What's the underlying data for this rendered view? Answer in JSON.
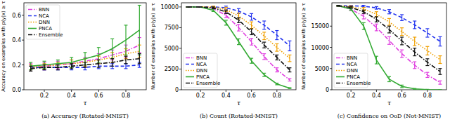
{
  "chart_data": [
    {
      "type": "line",
      "title": "(a) Accuracy (Rotated-MNIST)",
      "x_label": "τ",
      "y_label": "Accuracy on examples with p(y|x) ≥ τ",
      "x": [
        0.1,
        0.2,
        0.3,
        0.4,
        0.5,
        0.6,
        0.7,
        0.8,
        0.9
      ],
      "xlim": [
        0.05,
        0.95
      ],
      "xticks": [
        0.2,
        0.4,
        0.6,
        0.8
      ],
      "ylim": [
        0,
        0.7
      ],
      "yticks": [
        {
          "value": 0,
          "label": "0.0"
        },
        0.2,
        0.4,
        0.6
      ],
      "legend": "upper left",
      "series": [
        {
          "name": "BNN",
          "color": "#e040e0",
          "line_style": "dashdot",
          "values": [
            0.18,
            0.19,
            0.2,
            0.21,
            0.23,
            0.25,
            0.28,
            0.31,
            0.36
          ],
          "errors": [
            0.03,
            0.03,
            0.03,
            0.03,
            0.03,
            0.04,
            0.04,
            0.05,
            0.06
          ]
        },
        {
          "name": "NCA",
          "color": "#2233ee",
          "line_style": "dashed",
          "values": [
            0.18,
            0.18,
            0.18,
            0.18,
            0.18,
            0.19,
            0.19,
            0.19,
            0.2
          ],
          "errors": [
            0.02,
            0.02,
            0.02,
            0.02,
            0.02,
            0.02,
            0.02,
            0.02,
            0.02
          ]
        },
        {
          "name": "DNN",
          "color": "#f0a000",
          "line_style": "dotted",
          "values": [
            0.18,
            0.19,
            0.2,
            0.21,
            0.22,
            0.24,
            0.26,
            0.29,
            0.31
          ],
          "errors": [
            0.02,
            0.02,
            0.02,
            0.03,
            0.03,
            0.03,
            0.04,
            0.04,
            0.05
          ]
        },
        {
          "name": "PNCA",
          "color": "#33aa33",
          "line_style": "solid",
          "values": [
            0.19,
            0.2,
            0.21,
            0.22,
            0.25,
            0.28,
            0.33,
            0.4,
            0.48
          ],
          "errors": [
            0.03,
            0.03,
            0.03,
            0.04,
            0.05,
            0.06,
            0.08,
            0.12,
            0.2
          ]
        },
        {
          "name": "Ensemble",
          "color": "#111111",
          "line_style": "dashdot",
          "values": [
            0.17,
            0.18,
            0.18,
            0.19,
            0.2,
            0.21,
            0.22,
            0.24,
            0.25
          ],
          "errors": [
            0.02,
            0.02,
            0.02,
            0.02,
            0.02,
            0.03,
            0.03,
            0.03,
            0.04
          ]
        }
      ]
    },
    {
      "type": "line",
      "title": "(b) Count (Rotated-MNIST)",
      "x_label": "τ",
      "y_label": "Number of examples with p(y|x) ≥ τ",
      "x": [
        0.1,
        0.2,
        0.3,
        0.4,
        0.5,
        0.6,
        0.7,
        0.8,
        0.9
      ],
      "xlim": [
        0.05,
        0.95
      ],
      "xticks": [
        0.2,
        0.4,
        0.6,
        0.8
      ],
      "ylim": [
        0,
        10500
      ],
      "yticks": [
        0,
        2500,
        5000,
        7500,
        10000
      ],
      "legend": "lower left",
      "series": [
        {
          "name": "BNN",
          "color": "#e040e0",
          "line_style": "dashdot",
          "values": [
            10000,
            10000,
            9800,
            9000,
            7500,
            5800,
            4000,
            2400,
            1200
          ],
          "errors": [
            0,
            0,
            100,
            300,
            400,
            400,
            350,
            250,
            150
          ]
        },
        {
          "name": "NCA",
          "color": "#2233ee",
          "line_style": "dashed",
          "values": [
            10000,
            10000,
            10000,
            9900,
            9500,
            8800,
            7800,
            6600,
            5300
          ],
          "errors": [
            0,
            0,
            100,
            200,
            300,
            400,
            500,
            550,
            600
          ]
        },
        {
          "name": "DNN",
          "color": "#f0a000",
          "line_style": "dotted",
          "values": [
            10000,
            10000,
            10000,
            9700,
            8900,
            7800,
            6500,
            5100,
            3800
          ],
          "errors": [
            0,
            0,
            100,
            250,
            350,
            400,
            450,
            450,
            400
          ]
        },
        {
          "name": "PNCA",
          "color": "#33aa33",
          "line_style": "solid",
          "values": [
            10000,
            10000,
            9600,
            8100,
            5800,
            3500,
            1800,
            700,
            200
          ],
          "errors": [
            0,
            0,
            150,
            300,
            350,
            300,
            200,
            100,
            50
          ]
        },
        {
          "name": "Ensemble",
          "color": "#111111",
          "line_style": "dashdot",
          "values": [
            10000,
            10000,
            9900,
            9400,
            8400,
            7000,
            5400,
            3900,
            2400
          ],
          "errors": [
            0,
            0,
            100,
            200,
            300,
            350,
            350,
            300,
            250
          ]
        }
      ]
    },
    {
      "type": "line",
      "title": "(c) Confidence on OoD (Not-MNIST)",
      "x_label": "τ",
      "y_label": "Number of examples with p(y|x) ≥ τ",
      "x": [
        0.1,
        0.2,
        0.3,
        0.4,
        0.5,
        0.6,
        0.7,
        0.8,
        0.9
      ],
      "xlim": [
        0.05,
        0.95
      ],
      "xticks": [
        0.2,
        0.4,
        0.6,
        0.8
      ],
      "ylim": [
        0,
        20500
      ],
      "yticks": [
        0,
        5000,
        10000,
        15000
      ],
      "legend": "lower left",
      "series": [
        {
          "name": "BNN",
          "color": "#e040e0",
          "line_style": "dashdot",
          "values": [
            19800,
            19000,
            17300,
            14700,
            11600,
            8500,
            5800,
            3500,
            1700
          ],
          "errors": [
            100,
            300,
            600,
            800,
            900,
            900,
            800,
            600,
            400
          ]
        },
        {
          "name": "NCA",
          "color": "#2233ee",
          "line_style": "dashed",
          "values": [
            19800,
            19800,
            19700,
            19300,
            18400,
            17000,
            15300,
            13400,
            11400
          ],
          "errors": [
            100,
            100,
            200,
            300,
            500,
            700,
            900,
            1000,
            1100
          ]
        },
        {
          "name": "DNN",
          "color": "#f0a000",
          "line_style": "dotted",
          "values": [
            19800,
            19600,
            19000,
            17800,
            16000,
            13700,
            11400,
            9200,
            7100
          ],
          "errors": [
            100,
            200,
            400,
            600,
            800,
            900,
            1000,
            1000,
            900
          ]
        },
        {
          "name": "PNCA",
          "color": "#33aa33",
          "line_style": "solid",
          "values": [
            19800,
            19000,
            15000,
            7000,
            2500,
            800,
            200,
            50,
            0
          ],
          "errors": [
            100,
            300,
            800,
            900,
            600,
            300,
            100,
            50,
            10
          ]
        },
        {
          "name": "Ensemble",
          "color": "#111111",
          "line_style": "dashdot",
          "values": [
            19800,
            19400,
            18400,
            16600,
            14200,
            11500,
            8900,
            6500,
            4300
          ],
          "errors": [
            100,
            200,
            400,
            600,
            800,
            900,
            900,
            800,
            700
          ]
        }
      ]
    }
  ]
}
